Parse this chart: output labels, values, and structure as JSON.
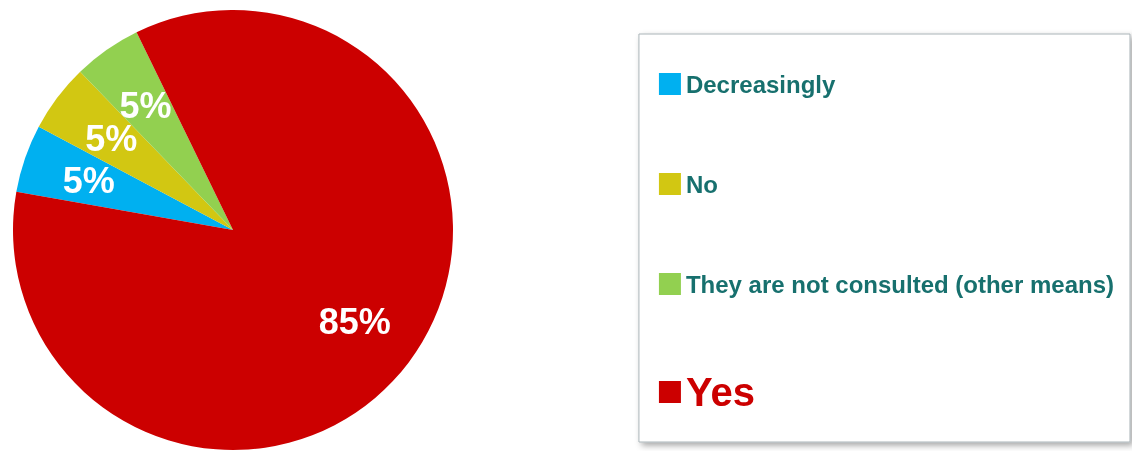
{
  "chart_data": {
    "type": "pie",
    "categories": [
      "Decreasingly",
      "No",
      "They are not consulted (other means)",
      "Yes"
    ],
    "values": [
      5,
      5,
      5,
      85
    ],
    "colors": [
      "#00b0f0",
      "#d2c712",
      "#92d050",
      "#cc0000"
    ],
    "value_labels": [
      "5%",
      "5%",
      "5%",
      "85%"
    ],
    "legend": "right"
  }
}
